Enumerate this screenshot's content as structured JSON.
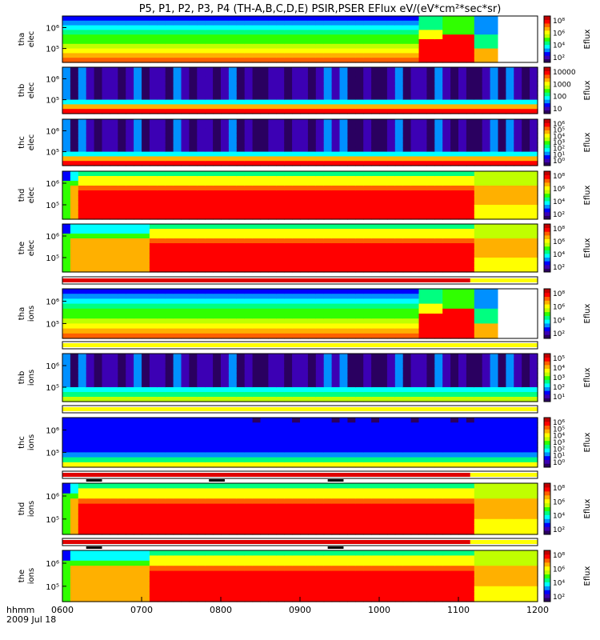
{
  "title": "P5, P1, P2, P3, P4 (TH-A,B,C,D,E) PSIR,PSER EFlux eV/(eV*cm²*sec*sr)",
  "time_axis": {
    "label_top": "hhmm",
    "label_bottom": "2009 Jul 18",
    "ticks": [
      "0600",
      "0700",
      "0800",
      "0900",
      "1000",
      "1100",
      "1200"
    ],
    "range_hours": [
      6,
      12
    ]
  },
  "colorbar_label": "Eflux",
  "colors": {
    "red": "#e00000",
    "yellow": "#ffff00",
    "black": "#000000",
    "white": "#ffffff"
  },
  "chart_data": [
    {
      "type": "heatmap",
      "probe": "tha",
      "species": "elec",
      "ylabel": [
        "tha",
        "elec"
      ],
      "y_ticks": [
        "10⁶",
        "10⁵"
      ],
      "cbar_ticks": [
        "10⁸",
        "10⁶",
        "10⁴",
        "10²"
      ],
      "scale": "log"
    },
    {
      "type": "heatmap",
      "probe": "thb",
      "species": "elec",
      "ylabel": [
        "thb",
        "elec"
      ],
      "y_ticks": [
        "10⁶",
        "10⁵"
      ],
      "cbar_ticks": [
        "10000",
        "1000",
        "100",
        "10"
      ],
      "scale": "log"
    },
    {
      "type": "heatmap",
      "probe": "thc",
      "species": "elec",
      "ylabel": [
        "thc",
        "elec"
      ],
      "y_ticks": [
        "10⁶",
        "10⁵"
      ],
      "cbar_ticks": [
        "10⁶",
        "10⁵",
        "10⁴",
        "10³",
        "10²",
        "10¹",
        "10⁰"
      ],
      "scale": "log"
    },
    {
      "type": "heatmap",
      "probe": "thd",
      "species": "elec",
      "ylabel": [
        "thd",
        "elec"
      ],
      "y_ticks": [
        "10⁶",
        "10⁵"
      ],
      "cbar_ticks": [
        "10⁸",
        "10⁶",
        "10⁴",
        "10²"
      ],
      "scale": "log"
    },
    {
      "type": "heatmap",
      "probe": "the",
      "species": "elec",
      "ylabel": [
        "the",
        "elec"
      ],
      "y_ticks": [
        "10⁶",
        "10⁵"
      ],
      "cbar_ticks": [
        "10⁸",
        "10⁶",
        "10⁴",
        "10²"
      ],
      "scale": "log"
    },
    {
      "type": "heatmap",
      "probe": "tha",
      "species": "ions",
      "ylabel": [
        "tha",
        "ions"
      ],
      "y_ticks": [
        "10⁶",
        "10⁵"
      ],
      "cbar_ticks": [
        "10⁸",
        "10⁶",
        "10⁴",
        "10²"
      ],
      "scale": "log"
    },
    {
      "type": "heatmap",
      "probe": "thb",
      "species": "ions",
      "ylabel": [
        "thb",
        "ions"
      ],
      "y_ticks": [
        "10⁶",
        "10⁵"
      ],
      "cbar_ticks": [
        "10⁵",
        "10⁴",
        "10³",
        "10²",
        "10¹"
      ],
      "scale": "log"
    },
    {
      "type": "heatmap",
      "probe": "thc",
      "species": "ions",
      "ylabel": [
        "thc",
        "ions"
      ],
      "y_ticks": [
        "10⁶",
        "10⁵"
      ],
      "cbar_ticks": [
        "10⁶",
        "10⁵",
        "10⁴",
        "10³",
        "10²",
        "10¹",
        "10⁰"
      ],
      "scale": "log"
    },
    {
      "type": "heatmap",
      "probe": "thd",
      "species": "ions",
      "ylabel": [
        "thd",
        "ions"
      ],
      "y_ticks": [
        "10⁶",
        "10⁵"
      ],
      "cbar_ticks": [
        "10⁸",
        "10⁶",
        "10⁴",
        "10²"
      ],
      "scale": "log"
    },
    {
      "type": "heatmap",
      "probe": "the",
      "species": "ions",
      "ylabel": [
        "the",
        "ions"
      ],
      "y_ticks": [
        "10⁶",
        "10⁵"
      ],
      "cbar_ticks": [
        "10⁸",
        "10⁶",
        "10⁴",
        "10²"
      ],
      "scale": "log"
    }
  ],
  "mode_bars": [
    {
      "above_panel": 5,
      "segments": [
        {
          "start": 6.0,
          "end": 11.15,
          "color": "red"
        },
        {
          "start": 11.15,
          "end": 12.0,
          "color": "yellow"
        }
      ]
    },
    {
      "above_panel": 6,
      "segments": [
        {
          "start": 6.0,
          "end": 12.0,
          "color": "yellow"
        }
      ]
    },
    {
      "above_panel": 7,
      "segments": [
        {
          "start": 6.0,
          "end": 12.0,
          "color": "yellow"
        }
      ]
    },
    {
      "above_panel": 8,
      "segments": [
        {
          "start": 6.0,
          "end": 11.15,
          "color": "red"
        },
        {
          "start": 11.15,
          "end": 12.0,
          "color": "yellow"
        }
      ],
      "black_ticks": [
        [
          6.3,
          6.5
        ],
        [
          7.85,
          8.05
        ],
        [
          9.35,
          9.55
        ]
      ]
    },
    {
      "above_panel": 9,
      "segments": [
        {
          "start": 6.0,
          "end": 11.15,
          "color": "red"
        },
        {
          "start": 11.15,
          "end": 12.0,
          "color": "yellow"
        }
      ],
      "black_ticks": [
        [
          6.3,
          6.5
        ],
        [
          9.35,
          9.55
        ]
      ]
    }
  ]
}
